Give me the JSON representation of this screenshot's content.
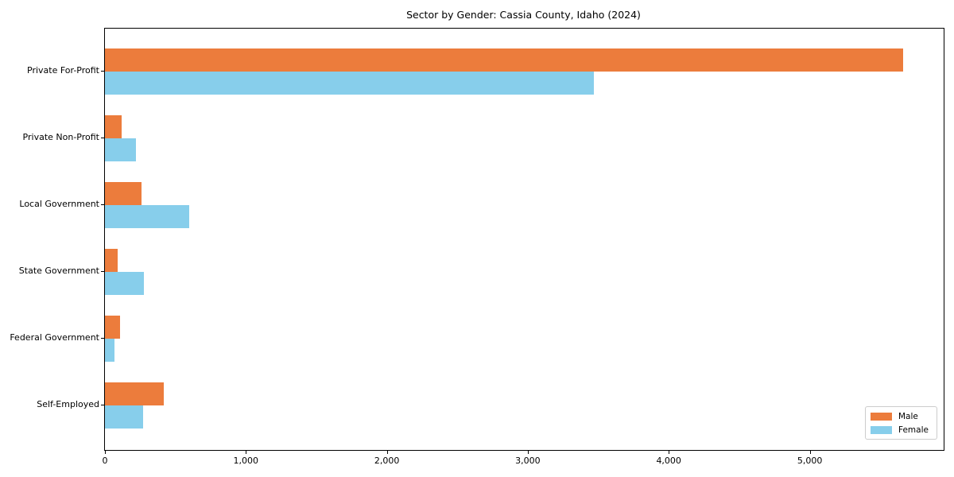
{
  "chart_data": {
    "type": "bar",
    "orientation": "horizontal",
    "title": "Sector by Gender: Cassia County, Idaho (2024)",
    "categories": [
      "Private For-Profit",
      "Private Non-Profit",
      "Local Government",
      "State Government",
      "Federal Government",
      "Self-Employed"
    ],
    "series": [
      {
        "name": "Male",
        "color": "#ec7c3c",
        "values": [
          5660,
          120,
          260,
          90,
          105,
          415
        ]
      },
      {
        "name": "Female",
        "color": "#87ceeb",
        "values": [
          3470,
          220,
          595,
          275,
          65,
          270
        ]
      }
    ],
    "xlabel": "",
    "ylabel": "",
    "xlim": [
      0,
      5950
    ],
    "x_ticks": [
      0,
      1000,
      2000,
      3000,
      4000,
      5000
    ],
    "x_tick_labels": [
      "0",
      "1,000",
      "2,000",
      "3,000",
      "4,000",
      "5,000"
    ],
    "grid": false,
    "legend": {
      "position": "lower right"
    },
    "colors": {
      "background": "#ffffff",
      "spine": "#000000",
      "text": "#000000",
      "legend_border": "#cccccc"
    }
  }
}
